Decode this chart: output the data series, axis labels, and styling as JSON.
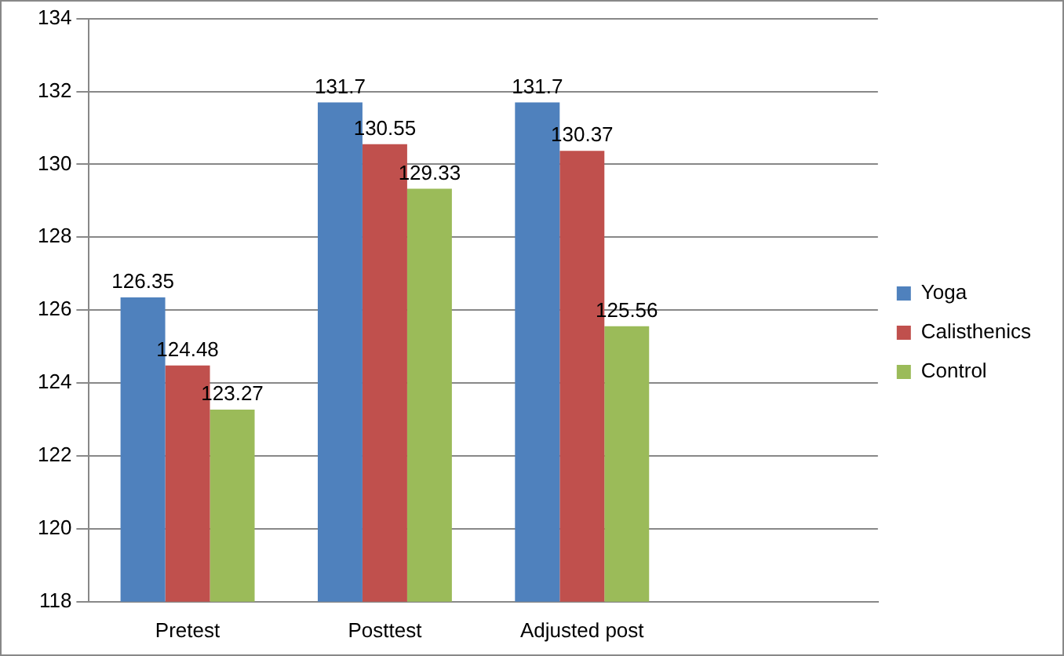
{
  "chart_data": {
    "type": "bar",
    "categories": [
      "Pretest",
      "Posttest",
      "Adjusted post",
      null
    ],
    "series": [
      {
        "name": "Yoga",
        "color": "#4f81bd",
        "values": [
          126.35,
          131.7,
          131.7,
          null
        ]
      },
      {
        "name": "Calisthenics",
        "color": "#c0504d",
        "values": [
          124.48,
          130.55,
          130.37,
          null
        ]
      },
      {
        "name": "Control",
        "color": "#9bbb59",
        "values": [
          123.27,
          129.33,
          125.56,
          null
        ]
      }
    ],
    "ylim": [
      118,
      134
    ],
    "yticks": [
      118,
      120,
      122,
      124,
      126,
      128,
      130,
      132,
      134
    ],
    "grid": "y",
    "legend": "right",
    "data_labels": true
  }
}
